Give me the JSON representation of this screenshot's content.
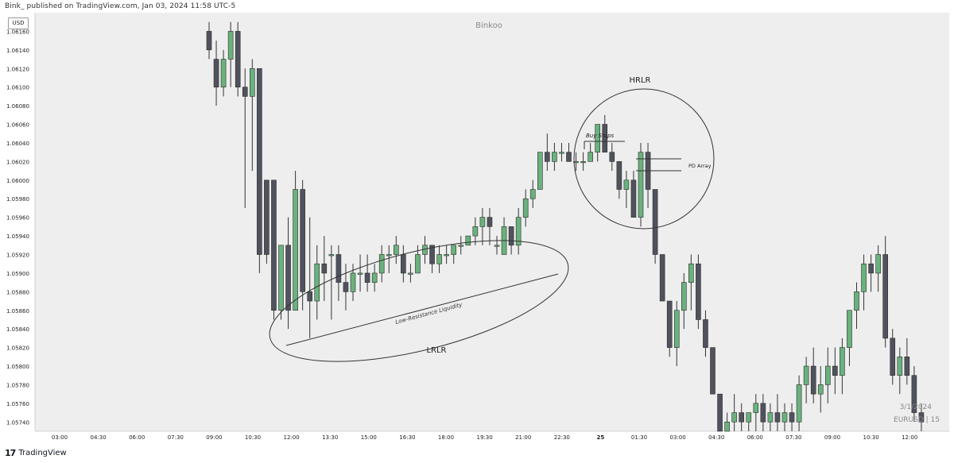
{
  "header": {
    "text": "Bink_ published on TradingView.com, Jan 03, 2024 11:58 UTC-5"
  },
  "footer": {
    "logo": "17",
    "brand": "TradingView"
  },
  "currency_button": "USD",
  "watermark": "Binkoo",
  "annotations": {
    "hrlr": "HRLR",
    "lrlr": "LRLR",
    "buy_stops": "Buy Stops",
    "pd_array": "PD Array",
    "low_resistance": "Low-Resistance Liquidity"
  },
  "bottom_right": {
    "date": "3/1/2024",
    "symbol": "EURUSD | 15"
  },
  "colors": {
    "bull": "#6ab27d",
    "bear": "#50535e",
    "background": "#eeeeee"
  },
  "chart_data": {
    "type": "candlestick",
    "symbol": "EURUSD",
    "interval": "15",
    "y_tick_labels": [
      "1.05740",
      "1.05760",
      "1.05780",
      "1.05800",
      "1.05820",
      "1.05840",
      "1.05860",
      "1.05880",
      "1.05900",
      "1.05920",
      "1.05940",
      "1.05960",
      "1.05980",
      "1.06000",
      "1.06020",
      "1.06040",
      "1.06060",
      "1.06080",
      "1.06100",
      "1.06120",
      "1.06140",
      "1.06160"
    ],
    "x_tick_labels": [
      "03:00",
      "04:30",
      "06:00",
      "07:30",
      "09:00",
      "10:30",
      "12:00",
      "13:30",
      "15:00",
      "16:30",
      "18:00",
      "19:30",
      "21:00",
      "22:30",
      "25",
      "01:30",
      "03:00",
      "04:30",
      "06:00",
      "07:30",
      "09:00",
      "10:30",
      "12:00"
    ],
    "ylim": [
      1.0573,
      1.0618
    ],
    "candles": [
      [
        1.0616,
        1.0617,
        1.0613,
        1.0614
      ],
      [
        1.0613,
        1.0615,
        1.0608,
        1.061
      ],
      [
        1.061,
        1.0614,
        1.0609,
        1.0613
      ],
      [
        1.0613,
        1.0617,
        1.061,
        1.0616
      ],
      [
        1.0616,
        1.0617,
        1.0609,
        1.061
      ],
      [
        1.061,
        1.0612,
        1.0597,
        1.0609
      ],
      [
        1.0609,
        1.0613,
        1.0601,
        1.0612
      ],
      [
        1.0612,
        1.0612,
        1.059,
        1.0592
      ],
      [
        1.06,
        1.06,
        1.0591,
        1.0592
      ],
      [
        1.06,
        1.06,
        1.0585,
        1.0586
      ],
      [
        1.0586,
        1.0593,
        1.0585,
        1.0593
      ],
      [
        1.0593,
        1.0596,
        1.0584,
        1.0586
      ],
      [
        1.0586,
        1.0601,
        1.0586,
        1.0599
      ],
      [
        1.0599,
        1.06,
        1.0586,
        1.0588
      ],
      [
        1.0588,
        1.0596,
        1.0583,
        1.0587
      ],
      [
        1.0587,
        1.0593,
        1.0585,
        1.0591
      ],
      [
        1.0591,
        1.0594,
        1.0587,
        1.059
      ],
      [
        1.0592,
        1.0593,
        1.0585,
        1.0592
      ],
      [
        1.0592,
        1.0593,
        1.0587,
        1.0589
      ],
      [
        1.0589,
        1.0591,
        1.0586,
        1.0588
      ],
      [
        1.0588,
        1.0591,
        1.0587,
        1.059
      ],
      [
        1.059,
        1.0592,
        1.0588,
        1.059
      ],
      [
        1.059,
        1.0592,
        1.0588,
        1.0589
      ],
      [
        1.0589,
        1.0591,
        1.0588,
        1.059
      ],
      [
        1.059,
        1.0593,
        1.0589,
        1.0592
      ],
      [
        1.0592,
        1.0593,
        1.059,
        1.0592
      ],
      [
        1.0592,
        1.0594,
        1.0591,
        1.0593
      ],
      [
        1.0592,
        1.0593,
        1.0589,
        1.059
      ],
      [
        1.059,
        1.0591,
        1.0589,
        1.059
      ],
      [
        1.059,
        1.0593,
        1.059,
        1.0592
      ],
      [
        1.0592,
        1.0594,
        1.0591,
        1.0593
      ],
      [
        1.0593,
        1.0593,
        1.059,
        1.0591
      ],
      [
        1.0591,
        1.0593,
        1.059,
        1.0592
      ],
      [
        1.0592,
        1.0593,
        1.0591,
        1.0592
      ],
      [
        1.0592,
        1.0593,
        1.0591,
        1.0593
      ],
      [
        1.0593,
        1.0594,
        1.0592,
        1.0593
      ],
      [
        1.0593,
        1.0594,
        1.0593,
        1.0594
      ],
      [
        1.0594,
        1.0596,
        1.0593,
        1.0595
      ],
      [
        1.0595,
        1.0597,
        1.0593,
        1.0596
      ],
      [
        1.0596,
        1.0597,
        1.0593,
        1.0595
      ],
      [
        1.0593,
        1.0594,
        1.0592,
        1.0593
      ],
      [
        1.0592,
        1.0596,
        1.0592,
        1.0595
      ],
      [
        1.0595,
        1.0595,
        1.0592,
        1.0593
      ],
      [
        1.0593,
        1.0597,
        1.0592,
        1.0596
      ],
      [
        1.0596,
        1.0599,
        1.0595,
        1.0598
      ],
      [
        1.0598,
        1.06,
        1.0597,
        1.0599
      ],
      [
        1.0599,
        1.0603,
        1.0599,
        1.0603
      ],
      [
        1.0603,
        1.0605,
        1.0601,
        1.0602
      ],
      [
        1.0602,
        1.0604,
        1.0601,
        1.0603
      ],
      [
        1.0603,
        1.0604,
        1.0602,
        1.0603
      ],
      [
        1.0603,
        1.0604,
        1.0602,
        1.0602
      ],
      [
        1.0602,
        1.0603,
        1.0601,
        1.0602
      ],
      [
        1.0602,
        1.0603,
        1.0601,
        1.0602
      ],
      [
        1.0602,
        1.0604,
        1.0602,
        1.0603
      ],
      [
        1.0603,
        1.0606,
        1.0602,
        1.0606
      ],
      [
        1.0606,
        1.0607,
        1.0603,
        1.0603
      ],
      [
        1.0603,
        1.0604,
        1.0601,
        1.0602
      ],
      [
        1.0602,
        1.0602,
        1.0598,
        1.0599
      ],
      [
        1.0599,
        1.0601,
        1.0597,
        1.06
      ],
      [
        1.06,
        1.0601,
        1.0596,
        1.0596
      ],
      [
        1.0596,
        1.0604,
        1.0595,
        1.0603
      ],
      [
        1.0603,
        1.0604,
        1.0597,
        1.0599
      ],
      [
        1.0599,
        1.0599,
        1.0591,
        1.0592
      ],
      [
        1.0592,
        1.0592,
        1.0587,
        1.0587
      ],
      [
        1.0587,
        1.0587,
        1.0581,
        1.0582
      ],
      [
        1.0582,
        1.0587,
        1.058,
        1.0586
      ],
      [
        1.0586,
        1.059,
        1.0584,
        1.0589
      ],
      [
        1.0589,
        1.0592,
        1.0586,
        1.0591
      ],
      [
        1.0591,
        1.0592,
        1.0584,
        1.0585
      ],
      [
        1.0585,
        1.0586,
        1.0581,
        1.0582
      ],
      [
        1.0582,
        1.0582,
        1.0577,
        1.0577
      ],
      [
        1.0577,
        1.0577,
        1.0573,
        1.0573
      ],
      [
        1.0573,
        1.0575,
        1.0573,
        1.0574
      ],
      [
        1.0574,
        1.0577,
        1.0573,
        1.0575
      ],
      [
        1.0575,
        1.0576,
        1.0573,
        1.0574
      ],
      [
        1.0574,
        1.0575,
        1.0573,
        1.0575
      ],
      [
        1.0575,
        1.0577,
        1.0573,
        1.0576
      ],
      [
        1.0576,
        1.0577,
        1.0573,
        1.0574
      ],
      [
        1.0574,
        1.0576,
        1.0573,
        1.0575
      ],
      [
        1.0575,
        1.0577,
        1.0573,
        1.0574
      ],
      [
        1.0574,
        1.0576,
        1.0573,
        1.0575
      ],
      [
        1.0575,
        1.0576,
        1.0573,
        1.0574
      ],
      [
        1.0574,
        1.0579,
        1.0573,
        1.0578
      ],
      [
        1.0578,
        1.0581,
        1.0576,
        1.058
      ],
      [
        1.058,
        1.0582,
        1.0576,
        1.0577
      ],
      [
        1.0577,
        1.058,
        1.0575,
        1.0578
      ],
      [
        1.0578,
        1.0582,
        1.0576,
        1.058
      ],
      [
        1.058,
        1.0582,
        1.0577,
        1.0579
      ],
      [
        1.0579,
        1.0583,
        1.0577,
        1.0582
      ],
      [
        1.0582,
        1.0586,
        1.058,
        1.0586
      ],
      [
        1.0586,
        1.0589,
        1.0584,
        1.0588
      ],
      [
        1.0588,
        1.0592,
        1.0586,
        1.0591
      ],
      [
        1.0591,
        1.0592,
        1.0588,
        1.059
      ],
      [
        1.059,
        1.0593,
        1.0588,
        1.0592
      ],
      [
        1.0592,
        1.0594,
        1.0582,
        1.0583
      ],
      [
        1.0583,
        1.0584,
        1.0578,
        1.0579
      ],
      [
        1.0579,
        1.0582,
        1.0577,
        1.0581
      ],
      [
        1.0581,
        1.0583,
        1.0578,
        1.0579
      ],
      [
        1.0579,
        1.058,
        1.0574,
        1.0575
      ],
      [
        1.0575,
        1.0576,
        1.0573,
        1.0574
      ]
    ]
  }
}
